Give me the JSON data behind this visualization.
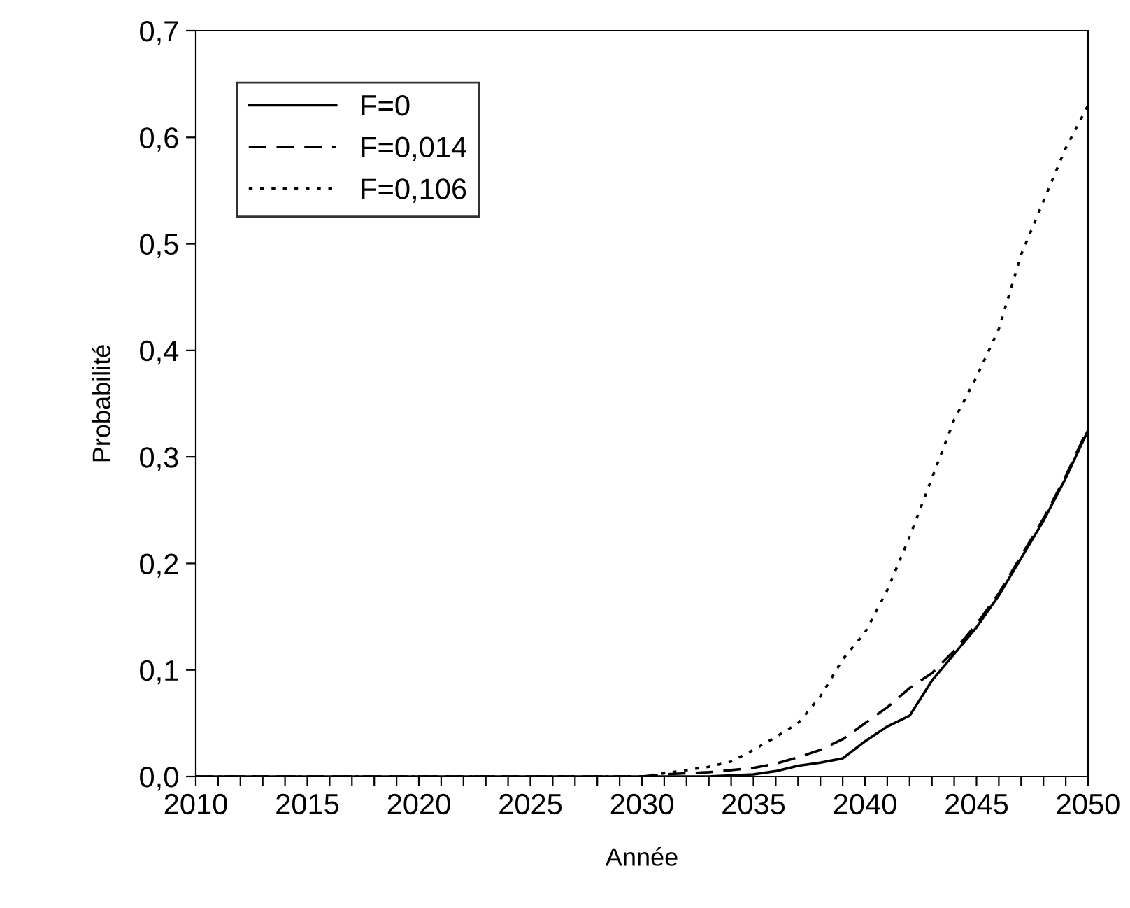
{
  "chart_data": {
    "type": "line",
    "xlabel": "Année",
    "ylabel": "Probabilité",
    "x": [
      2010,
      2011,
      2012,
      2013,
      2014,
      2015,
      2016,
      2017,
      2018,
      2019,
      2020,
      2021,
      2022,
      2023,
      2024,
      2025,
      2026,
      2027,
      2028,
      2029,
      2030,
      2031,
      2032,
      2033,
      2034,
      2035,
      2036,
      2037,
      2038,
      2039,
      2040,
      2041,
      2042,
      2043,
      2044,
      2045,
      2046,
      2047,
      2048,
      2049,
      2050
    ],
    "series": [
      {
        "name": "F=0",
        "color": "#000000",
        "line_style": "solid",
        "values": [
          0,
          0,
          0,
          0,
          0,
          0,
          0,
          0,
          0,
          0,
          0,
          0,
          0,
          0,
          0,
          0,
          0,
          0,
          0,
          0,
          0,
          0,
          0,
          0,
          0.001,
          0.002,
          0.005,
          0.01,
          0.013,
          0.017,
          0.033,
          0.047,
          0.057,
          0.09,
          0.115,
          0.14,
          0.17,
          0.205,
          0.24,
          0.28,
          0.325
        ]
      },
      {
        "name": "F=0,014",
        "color": "#000000",
        "line_style": "dashed",
        "values": [
          0,
          0,
          0,
          0,
          0,
          0,
          0,
          0,
          0,
          0,
          0,
          0,
          0,
          0,
          0,
          0,
          0,
          0,
          0,
          0,
          0,
          0.002,
          0.003,
          0.004,
          0.006,
          0.008,
          0.012,
          0.018,
          0.025,
          0.035,
          0.05,
          0.065,
          0.083,
          0.097,
          0.118,
          0.143,
          0.172,
          0.207,
          0.242,
          0.282,
          0.327
        ]
      },
      {
        "name": "F=0,106",
        "color": "#000000",
        "line_style": "dotted",
        "values": [
          0,
          0,
          0,
          0,
          0,
          0,
          0,
          0,
          0,
          0,
          0,
          0,
          0,
          0,
          0,
          0,
          0,
          0,
          0,
          0,
          0,
          0.003,
          0.006,
          0.009,
          0.014,
          0.025,
          0.037,
          0.05,
          0.075,
          0.11,
          0.135,
          0.175,
          0.225,
          0.28,
          0.335,
          0.375,
          0.42,
          0.49,
          0.54,
          0.59,
          0.63
        ]
      }
    ],
    "xlim": [
      2010,
      2050
    ],
    "ylim": [
      0,
      0.7
    ],
    "xticks": [
      2010,
      {
        "value": 2011,
        "label": null
      },
      {
        "value": 2012,
        "label": null
      },
      {
        "value": 2013,
        "label": null
      },
      {
        "value": 2014,
        "label": null
      },
      2015,
      {
        "value": 2016,
        "label": null
      },
      {
        "value": 2017,
        "label": null
      },
      {
        "value": 2018,
        "label": null
      },
      {
        "value": 2019,
        "label": null
      },
      2020,
      {
        "value": 2021,
        "label": null
      },
      {
        "value": 2022,
        "label": null
      },
      {
        "value": 2023,
        "label": null
      },
      {
        "value": 2024,
        "label": null
      },
      2025,
      {
        "value": 2026,
        "label": null
      },
      {
        "value": 2027,
        "label": null
      },
      {
        "value": 2028,
        "label": null
      },
      {
        "value": 2029,
        "label": null
      },
      2030,
      {
        "value": 2031,
        "label": null
      },
      {
        "value": 2032,
        "label": null
      },
      {
        "value": 2033,
        "label": null
      },
      {
        "value": 2034,
        "label": null
      },
      2035,
      {
        "value": 2036,
        "label": null
      },
      {
        "value": 2037,
        "label": null
      },
      {
        "value": 2038,
        "label": null
      },
      {
        "value": 2039,
        "label": null
      },
      2040,
      {
        "value": 2041,
        "label": null
      },
      {
        "value": 2042,
        "label": null
      },
      {
        "value": 2043,
        "label": null
      },
      {
        "value": 2044,
        "label": null
      },
      2045,
      {
        "value": 2046,
        "label": null
      },
      {
        "value": 2047,
        "label": null
      },
      {
        "value": 2048,
        "label": null
      },
      {
        "value": 2049,
        "label": null
      },
      2050
    ],
    "yticks": [
      {
        "value": 0,
        "label": "0,0"
      },
      {
        "value": 0.1,
        "label": "0,1"
      },
      {
        "value": 0.2,
        "label": "0,2"
      },
      {
        "value": 0.3,
        "label": "0,3"
      },
      {
        "value": 0.4,
        "label": "0,4"
      },
      {
        "value": 0.5,
        "label": "0,5"
      },
      {
        "value": 0.6,
        "label": "0,6"
      },
      {
        "value": 0.7,
        "label": "0,7"
      }
    ],
    "grid": false,
    "legend": "top left",
    "marker": "none"
  }
}
